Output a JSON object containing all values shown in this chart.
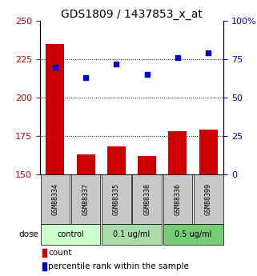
{
  "title": "GDS1809 / 1437853_x_at",
  "samples": [
    "GSM88334",
    "GSM88337",
    "GSM88335",
    "GSM88338",
    "GSM88336",
    "GSM88399"
  ],
  "bar_values": [
    235,
    163,
    168,
    162,
    178,
    179
  ],
  "percentile_values": [
    70,
    63,
    72,
    65,
    76,
    79
  ],
  "bar_color": "#cc0000",
  "dot_color": "#0000cc",
  "bar_base": 150,
  "ylim_left": [
    150,
    250
  ],
  "ylim_right": [
    0,
    100
  ],
  "yticks_left": [
    150,
    175,
    200,
    225,
    250
  ],
  "yticks_right": [
    0,
    25,
    50,
    75,
    100
  ],
  "ytick_labels_right": [
    "0",
    "25",
    "50",
    "75",
    "100%"
  ],
  "hgrid_values": [
    175,
    200,
    225
  ],
  "groups": [
    {
      "label": "control",
      "indices": [
        0,
        1
      ],
      "color": "#ccffcc"
    },
    {
      "label": "0.1 ug/ml",
      "indices": [
        2,
        3
      ],
      "color": "#aaeebb"
    },
    {
      "label": "0.5 ug/ml",
      "indices": [
        4,
        5
      ],
      "color": "#66dd88"
    }
  ],
  "dose_label": "dose",
  "legend_bar_label": "count",
  "legend_dot_label": "percentile rank within the sample",
  "bg_color": "#ffffff",
  "plot_bg": "#ffffff",
  "tick_label_color_left": "#cc0000",
  "tick_label_color_right": "#0000cc",
  "sample_box_color": "#c8c8c8",
  "title_fontsize": 10,
  "tick_fontsize": 8,
  "sample_fontsize": 6,
  "legend_fontsize": 7.5
}
